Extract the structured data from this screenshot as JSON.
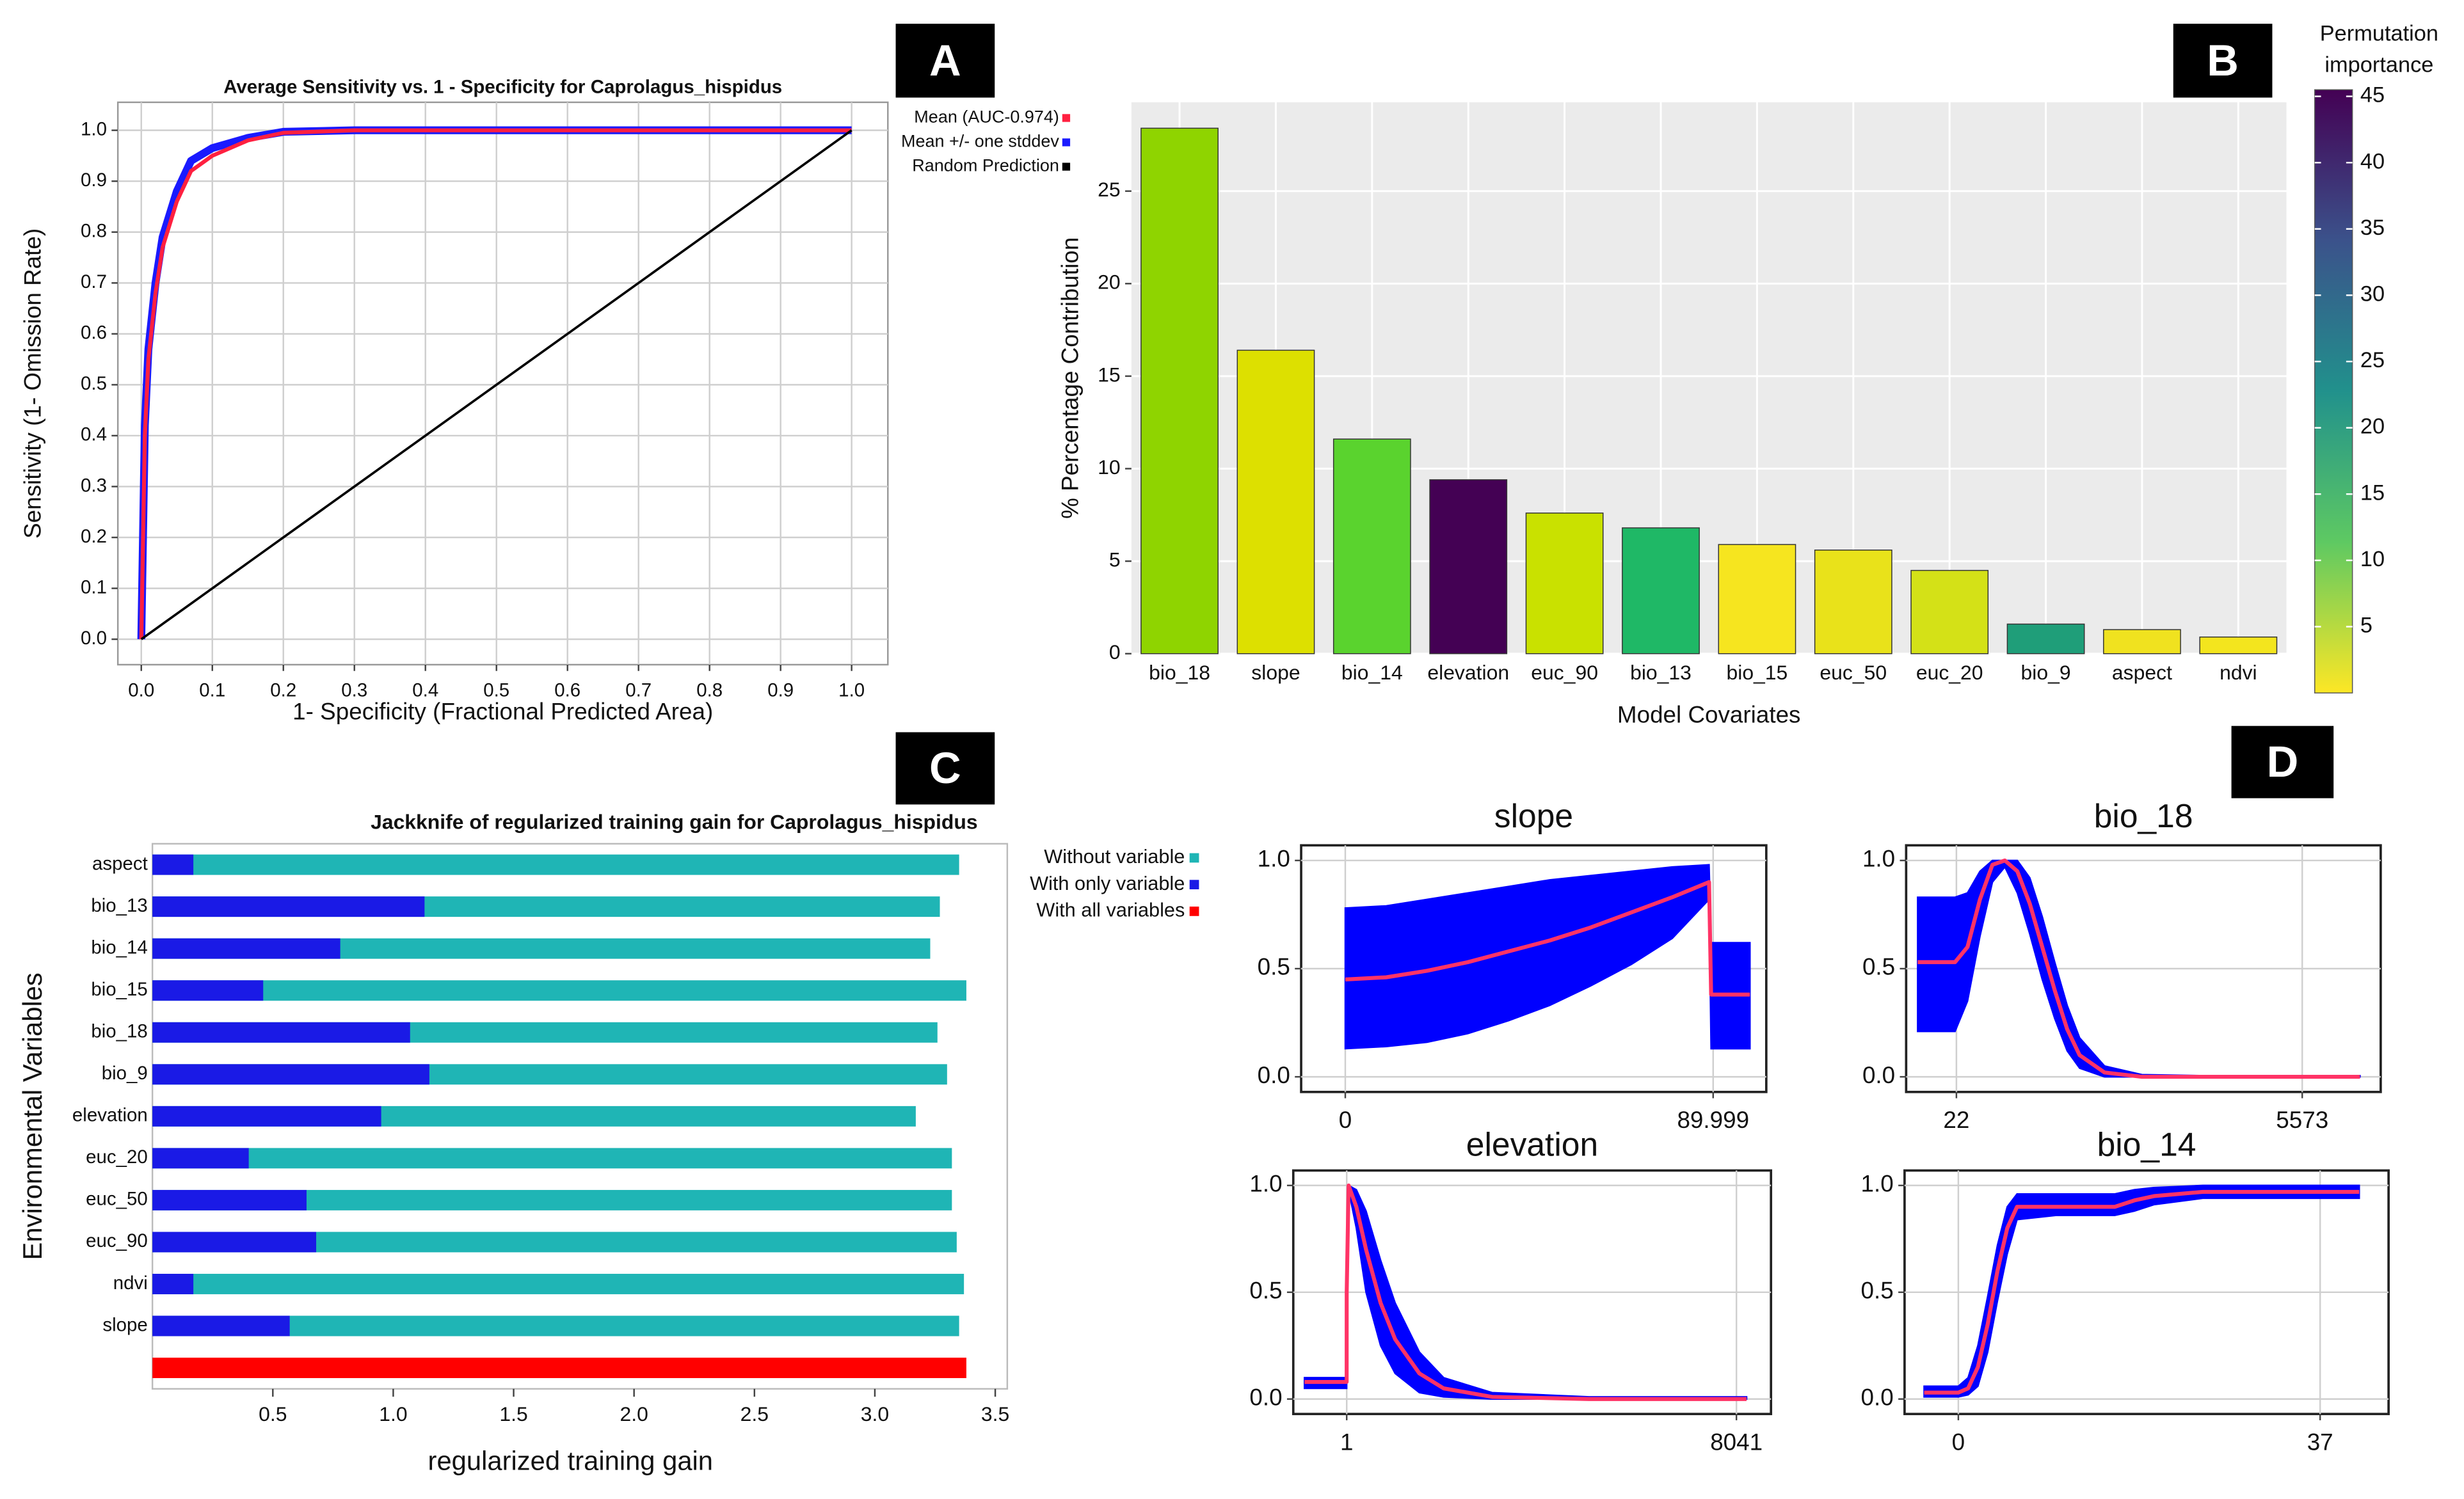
{
  "panel_labels": [
    "A",
    "B",
    "C",
    "D"
  ],
  "chart_data": [
    {
      "type": "line",
      "title": "Average Sensitivity vs. 1 - Specificity for Caprolagus_hispidus",
      "xlabel": "1- Specificity (Fractional Predicted Area)",
      "ylabel": "Sensitivity (1- Omission Rate)",
      "x": [
        0,
        0.005,
        0.01,
        0.02,
        0.03,
        0.05,
        0.07,
        0.1,
        0.15,
        0.2,
        0.3,
        0.5,
        1.0
      ],
      "series": [
        {
          "name": "Mean +/- one stddev",
          "color": "#1a1aff",
          "values": [
            0,
            0.42,
            0.57,
            0.7,
            0.79,
            0.88,
            0.94,
            0.965,
            0.985,
            0.997,
            1,
            1,
            1
          ]
        },
        {
          "name": "Mean (AUC-0.974)",
          "color": "#ff2040",
          "values": [
            0,
            0.4,
            0.55,
            0.68,
            0.77,
            0.86,
            0.92,
            0.95,
            0.98,
            0.995,
            1,
            1,
            1
          ]
        },
        {
          "name": "Random Prediction",
          "color": "#000000",
          "values": [
            0,
            0.005,
            0.01,
            0.02,
            0.03,
            0.05,
            0.07,
            0.1,
            0.15,
            0.2,
            0.3,
            0.5,
            1.0
          ]
        }
      ],
      "legend_order": [
        1,
        0,
        2
      ],
      "xlim": [
        -0.033,
        1.051
      ],
      "ylim": [
        -0.05,
        1.055
      ],
      "xticks": [
        {
          "value": 0,
          "label": "0.0"
        },
        0.1,
        0.2,
        0.3,
        0.4,
        0.5,
        0.6,
        0.7,
        0.8,
        0.9,
        {
          "value": 1,
          "label": "1.0"
        }
      ],
      "yticks": [
        {
          "value": 0,
          "label": "0.0"
        },
        0.1,
        0.2,
        0.3,
        0.4,
        0.5,
        0.6,
        0.7,
        0.8,
        0.9,
        {
          "value": 1,
          "label": "1.0"
        }
      ],
      "grid": true
    },
    {
      "type": "bar",
      "xlabel": "Model Covariates",
      "ylabel": "% Percentage Contribution",
      "categories": [
        "bio_18",
        "slope",
        "bio_14",
        "elevation",
        "euc_90",
        "bio_13",
        "bio_15",
        "euc_50",
        "euc_20",
        "bio_9",
        "aspect",
        "ndvi"
      ],
      "values": [
        28.4,
        16.4,
        11.6,
        9.4,
        7.6,
        6.8,
        5.9,
        5.6,
        4.5,
        1.6,
        1.3,
        0.9
      ],
      "colors": [
        "#8fd400",
        "#dde000",
        "#5ad32e",
        "#440154",
        "#c9e100",
        "#1fb866",
        "#f6e51f",
        "#e9e21a",
        "#d4e117",
        "#1f9e79",
        "#f0e21f",
        "#f3e51e"
      ],
      "ylim": [
        0,
        29.8
      ],
      "yticks": [
        0,
        5,
        10,
        15,
        20,
        25
      ],
      "grid": true,
      "colorbar_title": [
        "Permutation",
        "importance"
      ],
      "colorbar_lim": [
        0,
        45.5
      ],
      "colorbar_ticks": [
        5,
        10,
        15,
        20,
        25,
        30,
        35,
        40,
        45
      ]
    },
    {
      "type": "barh",
      "title": "Jackknife of regularized training gain for Caprolagus_hispidus",
      "xlabel": "regularized training gain",
      "ylabel": "Environmental Variables",
      "categories": [
        "aspect",
        "bio_13",
        "bio_14",
        "bio_15",
        "bio_18",
        "bio_9",
        "elevation",
        "euc_20",
        "euc_50",
        "euc_90",
        "ndvi",
        "slope",
        null
      ],
      "series": [
        {
          "name": "Without variable",
          "color": "#1fb5b5",
          "values": [
            3.35,
            3.27,
            3.23,
            3.38,
            3.26,
            3.3,
            3.17,
            3.32,
            3.32,
            3.34,
            3.37,
            3.35,
            null
          ]
        },
        {
          "name": "With only variable",
          "color": "#1a1ae6",
          "values": [
            0.17,
            1.13,
            0.78,
            0.46,
            1.07,
            1.15,
            0.95,
            0.4,
            0.64,
            0.68,
            0.17,
            0.57,
            null
          ]
        },
        {
          "name": "With all variables",
          "color": "#ff0000",
          "values": [
            null,
            null,
            null,
            null,
            null,
            null,
            null,
            null,
            null,
            null,
            null,
            null,
            3.38
          ]
        }
      ],
      "xlim": [
        0,
        3.55
      ],
      "xticks": [
        0.5,
        {
          "value": 1,
          "label": "1.0"
        },
        1.5,
        {
          "value": 2,
          "label": "2.0"
        },
        2.5,
        {
          "value": 3,
          "label": "3.0"
        },
        3.5
      ]
    },
    {
      "type": "line",
      "title": "slope",
      "x": [
        0,
        10,
        20,
        30,
        40,
        50,
        60,
        70,
        80,
        89,
        89.5,
        99
      ],
      "series": [
        {
          "color": "#0000ff",
          "upper": [
            0.78,
            0.79,
            0.82,
            0.85,
            0.88,
            0.91,
            0.93,
            0.95,
            0.97,
            0.98,
            0.62,
            0.62
          ],
          "lower": [
            0.13,
            0.14,
            0.16,
            0.2,
            0.26,
            0.33,
            0.42,
            0.52,
            0.64,
            0.82,
            0.13,
            0.13
          ]
        },
        {
          "color": "#ff3366",
          "values": [
            0.45,
            0.46,
            0.49,
            0.53,
            0.58,
            0.63,
            0.69,
            0.76,
            0.83,
            0.9,
            0.38,
            0.38
          ]
        }
      ],
      "xlim": [
        -10.8,
        103
      ],
      "ylim": [
        -0.07,
        1.07
      ],
      "xticks": [
        0,
        89.999
      ],
      "yticks": [
        {
          "value": 0,
          "label": "0.0"
        },
        0.5,
        {
          "value": 1,
          "label": "1.0"
        }
      ],
      "grid": true
    },
    {
      "type": "line",
      "title": "bio_18",
      "x": [
        -600,
        0,
        200,
        400,
        600,
        800,
        1000,
        1200,
        1400,
        1600,
        1800,
        2000,
        2400,
        3000,
        4000,
        5000,
        6500
      ],
      "series": [
        {
          "color": "#0000ff",
          "upper": [
            0.83,
            0.83,
            0.85,
            0.95,
            1,
            1,
            1,
            0.92,
            0.74,
            0.53,
            0.33,
            0.18,
            0.05,
            0.01,
            0.005,
            0.005,
            0.005
          ],
          "lower": [
            0.21,
            0.21,
            0.35,
            0.65,
            0.9,
            0.97,
            0.85,
            0.66,
            0.45,
            0.27,
            0.12,
            0.04,
            0,
            0,
            0,
            0,
            0
          ]
        },
        {
          "color": "#ff3366",
          "values": [
            0.53,
            0.53,
            0.6,
            0.82,
            0.98,
            1.0,
            0.95,
            0.8,
            0.6,
            0.4,
            0.22,
            0.1,
            0.02,
            0,
            0,
            0,
            0
          ]
        }
      ],
      "xlim": [
        -785,
        6833
      ],
      "ylim": [
        -0.07,
        1.07
      ],
      "xticks": [
        22,
        5573
      ],
      "yticks": [
        {
          "value": 0,
          "label": "0.0"
        },
        0.5,
        {
          "value": 1,
          "label": "1.0"
        }
      ],
      "grid": true
    },
    {
      "type": "line",
      "title": "elevation",
      "x": [
        -870,
        0,
        1,
        40,
        200,
        400,
        700,
        1000,
        1500,
        2000,
        3000,
        5000,
        8250
      ],
      "series": [
        {
          "color": "#0000ff",
          "upper": [
            0.1,
            0.1,
            0.5,
            1,
            0.98,
            0.88,
            0.65,
            0.45,
            0.22,
            0.1,
            0.03,
            0.01,
            0.01
          ],
          "lower": [
            0.05,
            0.05,
            0.5,
            0.98,
            0.8,
            0.5,
            0.25,
            0.12,
            0.03,
            0.01,
            0,
            0,
            0
          ]
        },
        {
          "color": "#ff3366",
          "values": [
            0.08,
            0.08,
            0.5,
            1.0,
            0.9,
            0.7,
            0.45,
            0.28,
            0.12,
            0.05,
            0.01,
            0,
            0
          ]
        }
      ],
      "xlim": [
        -1101,
        8754
      ],
      "ylim": [
        -0.07,
        1.07
      ],
      "xticks": [
        1,
        8041
      ],
      "yticks": [
        {
          "value": 0,
          "label": "0.0"
        },
        0.5,
        {
          "value": 1,
          "label": "1.0"
        }
      ],
      "grid": true
    },
    {
      "type": "line",
      "title": "bio_14",
      "x": [
        -3.5,
        0,
        1,
        2,
        3,
        4,
        5,
        6,
        10,
        16,
        18,
        20,
        25,
        41
      ],
      "series": [
        {
          "color": "#0000ff",
          "upper": [
            0.06,
            0.06,
            0.1,
            0.25,
            0.48,
            0.72,
            0.9,
            0.96,
            0.96,
            0.96,
            0.98,
            0.99,
            1,
            1
          ],
          "lower": [
            0.01,
            0.01,
            0.02,
            0.06,
            0.22,
            0.46,
            0.68,
            0.84,
            0.86,
            0.86,
            0.88,
            0.91,
            0.94,
            0.94
          ]
        },
        {
          "color": "#ff3366",
          "values": [
            0.03,
            0.03,
            0.05,
            0.15,
            0.35,
            0.6,
            0.8,
            0.9,
            0.9,
            0.9,
            0.93,
            0.95,
            0.97,
            0.97
          ]
        }
      ],
      "xlim": [
        -5.5,
        44
      ],
      "ylim": [
        -0.07,
        1.07
      ],
      "xticks": [
        0,
        37
      ],
      "yticks": [
        {
          "value": 0,
          "label": "0.0"
        },
        0.5,
        {
          "value": 1,
          "label": "1.0"
        }
      ],
      "grid": true
    }
  ]
}
